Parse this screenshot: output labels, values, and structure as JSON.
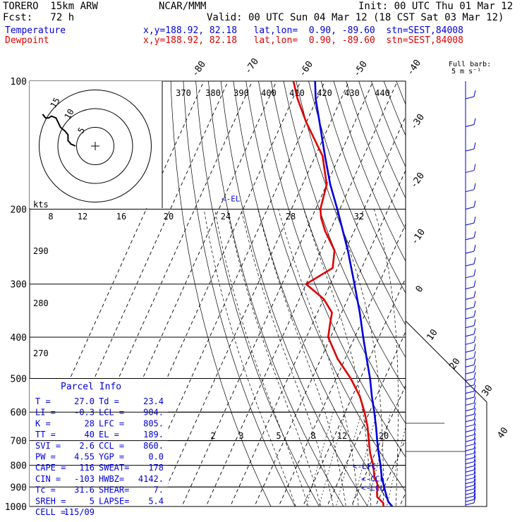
{
  "header": {
    "model": "TORERO  15km ARW",
    "center": "NCAR/MMM",
    "init": "Init: 00 UTC Thu 01 Mar 12",
    "fcst": "Fcst:   72 h",
    "valid": "Valid: 00 UTC Sun 04 Mar 12 (18 CST Sat 03 Mar 12)",
    "temp_label": "Temperature",
    "temp_info": "x,y=188.92, 82.18   lat,lon=  0.90, -89.60  stn=SEST,84008",
    "dew_label": "Dewpoint",
    "dew_info": "x,y=188.92, 82.18   lat,lon=  0.90, -89.60  stn=SEST,84008",
    "barb_title_1": "Full barb:",
    "barb_title_2": "5 m s⁻¹"
  },
  "colors": {
    "temperature": "#0000dd",
    "dewpoint": "#dd0000",
    "grid": "#000000"
  },
  "chart_data": {
    "type": "line",
    "yscale": "log-pressure",
    "ylabel": "",
    "xlabel": "",
    "pressure_ticks": [
      "100",
      "200",
      "300",
      "400",
      "500",
      "600",
      "700",
      "800",
      "900",
      "1000"
    ],
    "isotherm_labels": [
      "-80",
      "-70",
      "-60",
      "-50",
      "-40",
      "-30",
      "-20",
      "-10",
      "0",
      "10",
      "20",
      "30",
      "40"
    ],
    "theta_labels": [
      "370",
      "380",
      "390",
      "400",
      "410",
      "420",
      "430",
      "440"
    ],
    "theta_left_labels": [
      "290",
      "280",
      "270"
    ],
    "mixing_ratio_labels": [
      "2",
      "3",
      "5",
      "8",
      "12",
      "20"
    ],
    "hodo_speed_labels": [
      "8",
      "12",
      "16",
      "20",
      "24",
      "28",
      "32"
    ],
    "hodo_unit": "kts",
    "hodo_ring_labels": [
      "5",
      "10",
      "15"
    ],
    "level_markers": [
      {
        "label": "<-EL",
        "p": 189
      },
      {
        "label": "<-LFC",
        "p": 805
      },
      {
        "label": "<-CCL",
        "p": 860
      },
      {
        "label": "<-LCL",
        "p": 904
      }
    ],
    "series": [
      {
        "name": "Temperature",
        "color": "#0000dd",
        "p": [
          1000,
          975,
          950,
          925,
          900,
          850,
          800,
          750,
          700,
          650,
          600,
          550,
          500,
          450,
          400,
          350,
          300,
          250,
          200,
          175,
          150,
          125,
          110,
          100
        ],
        "t": [
          27.0,
          24.5,
          23.0,
          21.5,
          20.0,
          17.0,
          14.5,
          11.5,
          8.5,
          5.5,
          2.0,
          -2.0,
          -6.0,
          -11.0,
          -16.5,
          -22.5,
          -30.0,
          -39.0,
          -51.0,
          -58.5,
          -66.0,
          -74.5,
          -80.5,
          -84.0
        ]
      },
      {
        "name": "Dewpoint",
        "color": "#dd0000",
        "p": [
          1000,
          980,
          950,
          925,
          900,
          875,
          850,
          800,
          750,
          700,
          650,
          600,
          550,
          500,
          450,
          400,
          375,
          350,
          325,
          300,
          275,
          250,
          225,
          210,
          200,
          175,
          150,
          125,
          110,
          100
        ],
        "t": [
          23.4,
          22.5,
          19.0,
          18.0,
          17.5,
          16.0,
          14.0,
          11.5,
          8.0,
          5.0,
          2.0,
          -2.0,
          -7.0,
          -14.0,
          -23.0,
          -31.0,
          -32.5,
          -34.0,
          -40.0,
          -50.0,
          -42.0,
          -44.5,
          -52.0,
          -56.0,
          -58.0,
          -60.0,
          -67.0,
          -80.0,
          -88.0,
          -93.0
        ]
      }
    ],
    "hodograph_path": [
      [
        0,
        0
      ],
      [
        -1.5,
        0.5
      ],
      [
        -2.5,
        1.5
      ],
      [
        -2.5,
        3
      ],
      [
        -3.5,
        4
      ],
      [
        -5,
        5
      ],
      [
        -6.5,
        7.5
      ],
      [
        -8,
        8
      ],
      [
        -9,
        7.5
      ],
      [
        -10,
        7.5
      ],
      [
        -11,
        8.5
      ]
    ]
  },
  "parcel_info": {
    "title": "Parcel Info",
    "rows": [
      [
        "T  =",
        "27.0",
        "Td =",
        "23.4"
      ],
      [
        "LI =",
        "-0.3",
        "LCL =",
        "904."
      ],
      [
        "K  =",
        "28",
        "LFC =",
        "805."
      ],
      [
        "TT =",
        "40",
        "EL  =",
        "189."
      ],
      [
        "SVI =",
        "2.6",
        "CCL =",
        "860."
      ],
      [
        "PW =",
        "4.55",
        "YGP =",
        "0.0"
      ],
      [
        "CAPE =",
        "116",
        "SWEAT=",
        "178"
      ],
      [
        "CIN =",
        "-103",
        "HWBZ=",
        "4142."
      ],
      [
        "Tc =",
        "31.6",
        "SHEAR=",
        "7."
      ],
      [
        "SREH =",
        "5",
        "LAPSE=",
        "5.4"
      ],
      [
        "CELL =",
        "115/09",
        "",
        ""
      ]
    ]
  }
}
